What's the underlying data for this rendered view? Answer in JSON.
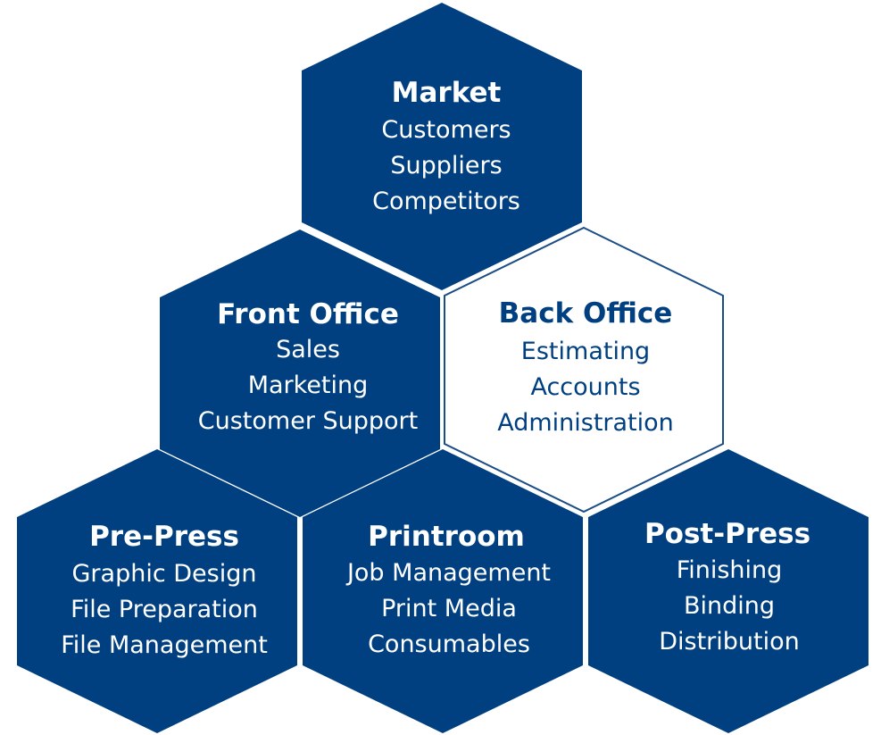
{
  "colors": {
    "hex_fill": "#004080",
    "hex_text": "#ffffff",
    "outline_stroke": "#1b4d86",
    "outline_text": "#004080",
    "background": "#ffffff"
  },
  "hexagons": [
    {
      "id": "market",
      "title": "Market",
      "items": [
        "Customers",
        "Suppliers",
        "Competitors"
      ],
      "style": "filled"
    },
    {
      "id": "front-office",
      "title": "Front Office",
      "items": [
        "Sales",
        "Marketing",
        "Customer Support"
      ],
      "style": "filled"
    },
    {
      "id": "back-office",
      "title": "Back Office",
      "items": [
        "Estimating",
        "Accounts",
        "Administration"
      ],
      "style": "outline"
    },
    {
      "id": "pre-press",
      "title": "Pre-Press",
      "items": [
        "Graphic Design",
        "File Preparation",
        "File Management"
      ],
      "style": "filled"
    },
    {
      "id": "printroom",
      "title": "Printroom",
      "items": [
        "Job Management",
        "Print Media",
        "Consumables"
      ],
      "style": "filled"
    },
    {
      "id": "post-press",
      "title": "Post-Press",
      "items": [
        "Finishing",
        "Binding",
        "Distribution"
      ],
      "style": "filled"
    }
  ]
}
